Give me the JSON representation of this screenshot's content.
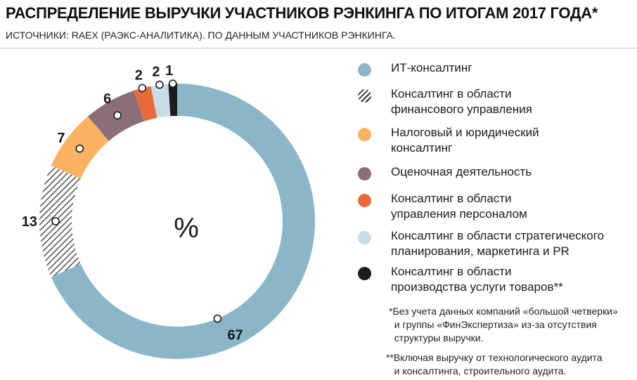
{
  "title": "РАСПРЕДЕЛЕНИЕ ВЫРУЧКИ УЧАСТНИКОВ РЭНКИНГА ПО ИТОГАМ 2017 ГОДА*",
  "subtitle": "ИСТОЧНИКИ: RAEX (РАЭКС-АНАЛИТИКА). ПО ДАННЫМ УЧАСТНИКОВ РЭНКИНГА.",
  "chart_data": {
    "type": "pie",
    "center_label": "%",
    "categories": [
      "ИТ-консалтинг",
      "Консалтинг в области финансового управления",
      "Налоговый и юридический консалтинг",
      "Оценочная деятельность",
      "Консалтинг в области управления персоналом",
      "Консалтинг в области стратегического планирования, маркетинга и PR",
      "Консалтинг в области производства услуги товаров**"
    ],
    "values": [
      67,
      13,
      7,
      6,
      2,
      2,
      1
    ],
    "colors": [
      "#8ab6c7",
      "hatch",
      "#f9b260",
      "#8b6f78",
      "#e8693a",
      "#c8dce6",
      "#1b1b1b"
    ],
    "legend_position": "right"
  },
  "legend": [
    {
      "line1": "ИТ-консалтинг",
      "line2": "",
      "color": "#8ab6c7",
      "pattern": "solid"
    },
    {
      "line1": "Консалтинг в области",
      "line2": "финансового управления",
      "color": "#333333",
      "pattern": "hatch"
    },
    {
      "line1": "Налоговый и юридический",
      "line2": "консалтинг",
      "color": "#f9b260",
      "pattern": "solid"
    },
    {
      "line1": "Оценочная деятельность",
      "line2": "",
      "color": "#8b6f78",
      "pattern": "solid"
    },
    {
      "line1": "Консалтинг в области",
      "line2": "управления персоналом",
      "color": "#e8693a",
      "pattern": "solid"
    },
    {
      "line1": "Консалтинг в области стратегического",
      "line2": "планирования, маркетинга и PR",
      "color": "#c8dce6",
      "pattern": "solid"
    },
    {
      "line1": "Консалтинг в области",
      "line2": "производства услуги товаров**",
      "color": "#1b1b1b",
      "pattern": "solid"
    }
  ],
  "notes": {
    "note1_line1": "*Без учета данных компаний «большой четверки»",
    "note1_line2": "  и группы «ФинЭкспертиза» из-за отсутствия",
    "note1_line3": "  структуры выручки.",
    "note2_line1": "**Включая выручку от технологического аудита",
    "note2_line2": "   и консалтинга, строительного аудита."
  }
}
